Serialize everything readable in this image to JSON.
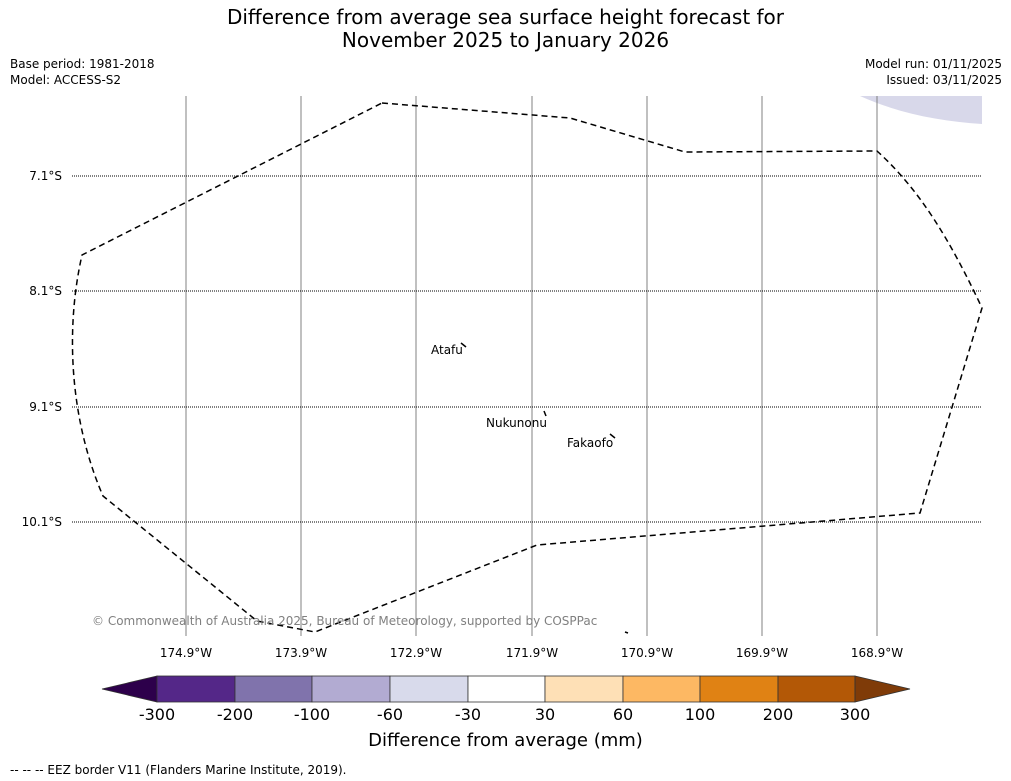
{
  "title": {
    "line1": "Difference from average sea surface height forecast for",
    "line2": "November 2025 to January 2026"
  },
  "meta_left": {
    "base_period": "Base period: 1981-2018",
    "model": "Model: ACCESS-S2"
  },
  "meta_right": {
    "model_run": "Model run: 01/11/2025",
    "issued": "Issued: 03/11/2025"
  },
  "map": {
    "latitude_labels": [
      "7.1°S",
      "8.1°S",
      "9.1°S",
      "10.1°S"
    ],
    "longitude_labels": [
      "174.9°W",
      "173.9°W",
      "172.9°W",
      "171.9°W",
      "170.9°W",
      "169.9°W",
      "168.9°W"
    ],
    "places": [
      {
        "name": "Atafu"
      },
      {
        "name": "Nukunonu"
      },
      {
        "name": "Fakaofo"
      }
    ],
    "copyright": "© Commonwealth of Australia 2025, Bureau of Meteorology, supported by COSPPac",
    "anomaly_patch_color": "#d8d8ea"
  },
  "colorbar": {
    "title": "Difference from average (mm)",
    "tick_labels": [
      "-300",
      "-200",
      "-100",
      "-60",
      "-30",
      "30",
      "60",
      "100",
      "200",
      "300"
    ],
    "colors": {
      "below_min": "#2d004b",
      "bins": [
        "#542788",
        "#8073ac",
        "#b2abd2",
        "#d8daeb",
        "#ffffff",
        "#fee0b6",
        "#fdb863",
        "#e08214",
        "#b35806"
      ],
      "above_max": "#7f3b08"
    }
  },
  "legend_note": "--  --  -- EEZ border V11 (Flanders Marine Institute, 2019)."
}
